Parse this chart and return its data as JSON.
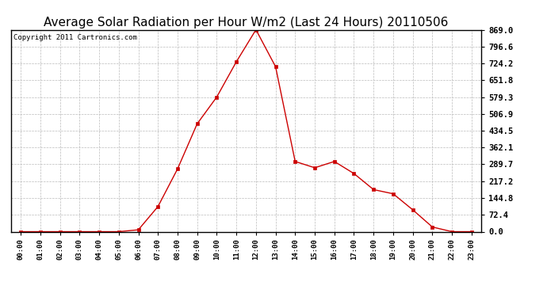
{
  "title": "Average Solar Radiation per Hour W/m2 (Last 24 Hours) 20110506",
  "copyright": "Copyright 2011 Cartronics.com",
  "x_labels": [
    "00:00",
    "01:00",
    "02:00",
    "03:00",
    "04:00",
    "05:00",
    "06:00",
    "07:00",
    "08:00",
    "09:00",
    "10:00",
    "11:00",
    "12:00",
    "13:00",
    "14:00",
    "15:00",
    "16:00",
    "17:00",
    "18:00",
    "19:00",
    "20:00",
    "21:00",
    "22:00",
    "23:00"
  ],
  "y_values": [
    0.0,
    0.0,
    0.0,
    0.0,
    0.0,
    0.0,
    8.0,
    108.0,
    270.0,
    464.0,
    579.3,
    731.0,
    869.0,
    710.0,
    302.0,
    275.0,
    302.0,
    250.0,
    181.0,
    163.0,
    94.0,
    20.0,
    0.0,
    0.0
  ],
  "y_ticks": [
    0.0,
    72.4,
    144.8,
    217.2,
    289.7,
    362.1,
    434.5,
    506.9,
    579.3,
    651.8,
    724.2,
    796.6,
    869.0
  ],
  "ymax": 869.0,
  "ymin": 0.0,
  "line_color": "#cc0000",
  "marker": "s",
  "marker_size": 2.5,
  "grid_color": "#bbbbbb",
  "bg_color": "#ffffff",
  "plot_bg_color": "#ffffff",
  "title_fontsize": 11,
  "copyright_fontsize": 6.5
}
